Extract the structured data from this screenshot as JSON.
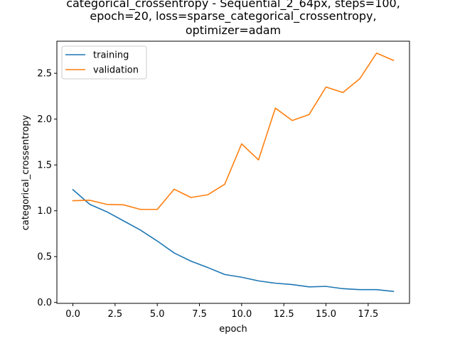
{
  "chart_data": {
    "type": "line",
    "title_lines": [
      "categorical_crossentropy - Sequential_2_64px, steps=100,",
      "epoch=20, loss=sparse_categorical_crossentropy,",
      "optimizer=adam"
    ],
    "xlabel": "epoch",
    "ylabel": "categorical_crossentropy",
    "xlim": [
      -0.95,
      19.95
    ],
    "ylim": [
      -0.01,
      2.85
    ],
    "xticks": [
      0.0,
      2.5,
      5.0,
      7.5,
      10.0,
      12.5,
      15.0,
      17.5
    ],
    "xtick_labels": [
      "0.0",
      "2.5",
      "5.0",
      "7.5",
      "10.0",
      "12.5",
      "15.0",
      "17.5"
    ],
    "yticks": [
      0.0,
      0.5,
      1.0,
      1.5,
      2.0,
      2.5
    ],
    "ytick_labels": [
      "0.0",
      "0.5",
      "1.0",
      "1.5",
      "2.0",
      "2.5"
    ],
    "grid": false,
    "legend_position": "top-left",
    "x": [
      0,
      1,
      2,
      3,
      4,
      5,
      6,
      7,
      8,
      9,
      10,
      11,
      12,
      13,
      14,
      15,
      16,
      17,
      18,
      19
    ],
    "series": [
      {
        "name": "training",
        "color": "#1f77b4",
        "values": [
          1.23,
          1.07,
          0.99,
          0.89,
          0.79,
          0.67,
          0.54,
          0.45,
          0.38,
          0.305,
          0.275,
          0.235,
          0.21,
          0.195,
          0.17,
          0.175,
          0.15,
          0.14,
          0.14,
          0.12
        ]
      },
      {
        "name": "validation",
        "color": "#ff7f0e",
        "values": [
          1.11,
          1.115,
          1.07,
          1.065,
          1.015,
          1.015,
          1.235,
          1.145,
          1.175,
          1.29,
          1.73,
          1.555,
          2.12,
          1.985,
          2.05,
          2.35,
          2.29,
          2.44,
          2.72,
          2.64
        ]
      }
    ]
  }
}
